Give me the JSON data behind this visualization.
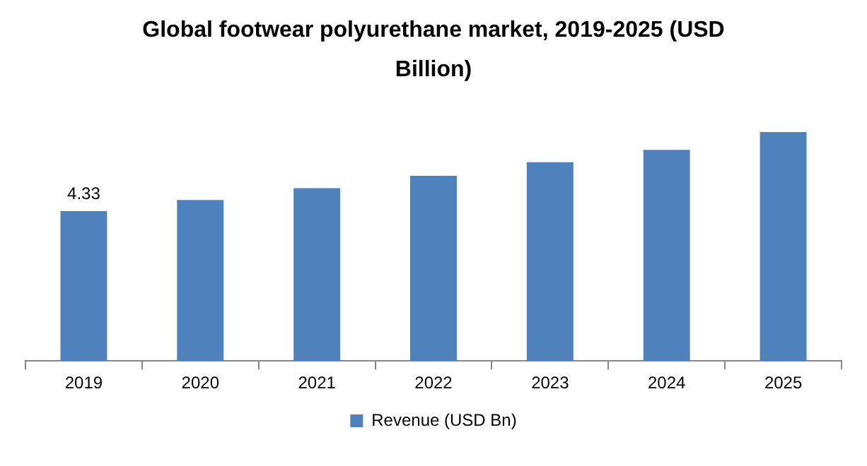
{
  "chart_data": {
    "type": "bar",
    "title": "Global footwear polyurethane market, 2019-2025 (USD Billion)",
    "categories": [
      "2019",
      "2020",
      "2021",
      "2022",
      "2023",
      "2024",
      "2025"
    ],
    "series": [
      {
        "name": "Revenue (USD Bn)",
        "color": "#4f81bd",
        "values": [
          4.33,
          4.65,
          4.99,
          5.35,
          5.74,
          6.1,
          6.61
        ],
        "value_labels": [
          "4.33",
          null,
          null,
          null,
          null,
          null,
          null
        ]
      }
    ],
    "grid": false,
    "legend": "bottom"
  }
}
